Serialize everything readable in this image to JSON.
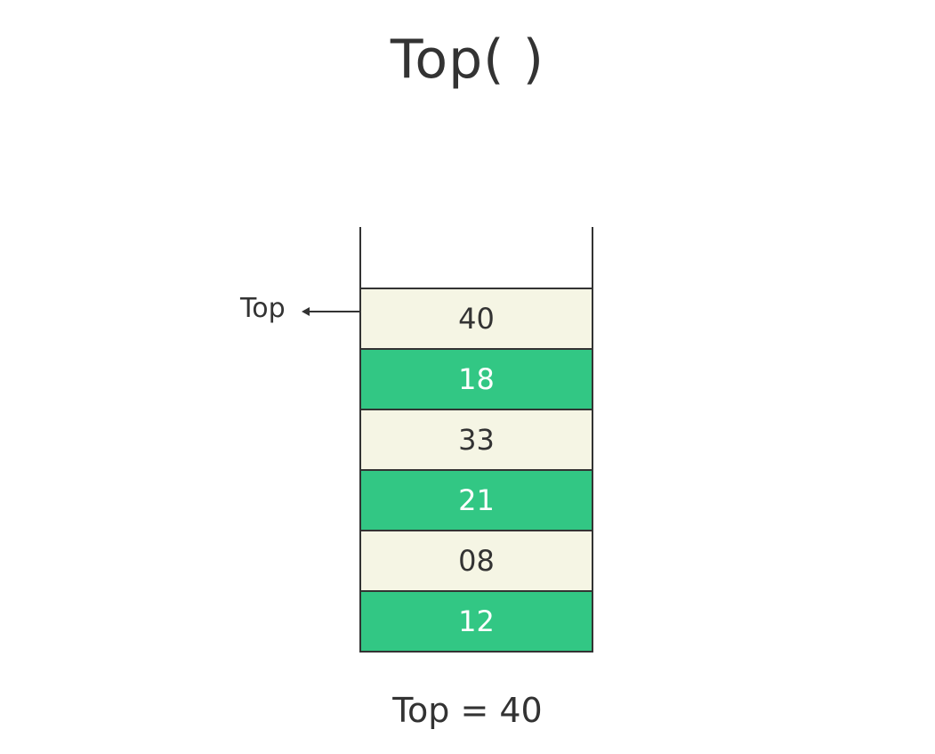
{
  "title": "Top( )",
  "pointer_label": "Top",
  "stack": {
    "cells": [
      {
        "value": "40",
        "color": "#f5f5e4"
      },
      {
        "value": "18",
        "color": "#32c784"
      },
      {
        "value": "33",
        "color": "#f5f5e4"
      },
      {
        "value": "21",
        "color": "#32c784"
      },
      {
        "value": "08",
        "color": "#f5f5e4"
      },
      {
        "value": "12",
        "color": "#32c784"
      }
    ]
  },
  "result": "Top = 40"
}
